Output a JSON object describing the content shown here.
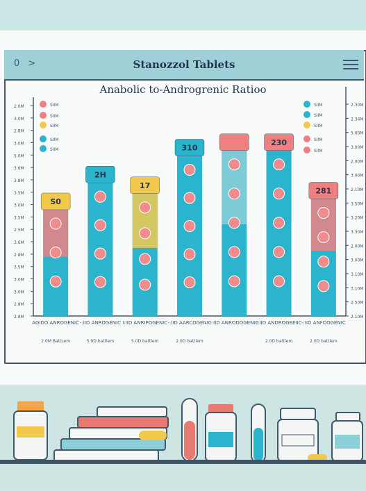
{
  "window": {
    "title": "Stanozzol Tablets",
    "nav_icon": "0 >",
    "menu_icon": "hamburger-menu-icon"
  },
  "chart_data": {
    "type": "bar",
    "title": "Anabolic to-Androgrenic Ratioo",
    "categories": [
      "AGIDO ANROGENIC",
      "-:IID ANROGENIC",
      "I:IID ANRIPOGENIC",
      "-:IID AARCOGENIC",
      "-:IID ANRODOGENIC",
      "-:IID ANDROGEEIIC",
      "-:IID ANFDOGENIC"
    ],
    "sublabels": [
      "2.0M BattLem",
      "5.9D battlem",
      "5.0D battlem",
      "2.0D battlem",
      "",
      "2.0D battlem",
      "2.0D battlem"
    ],
    "values": [
      20,
      25,
      23,
      30,
      31,
      31,
      22
    ],
    "cap_labels": [
      "S0",
      "2H",
      "17",
      "310",
      "",
      "230",
      "281"
    ],
    "series_colors": [
      "#2bb4cc",
      "#f2c94c",
      "#f08080",
      "#6fc3d3"
    ],
    "left_axis_labels": [
      "2.0M",
      "3.0M",
      "2.8M",
      "3.0M",
      "5.0M",
      "3.6M",
      "3.8M",
      "3.5M",
      "3.0M",
      "3.5M",
      "2.5M",
      "3.6M",
      "2.8M",
      "3.5M",
      "3.0M",
      "3.0M",
      "2.8M",
      "2.8M"
    ],
    "right_axis_labels": [
      "2.30M",
      "2.34M",
      "5.00M",
      "3.00M",
      "2.00M",
      "3.00M",
      "2.10M",
      "3.50M",
      "3.20M",
      "3.30M",
      "2.00M",
      "3.00M",
      "3.10M",
      "3.10M",
      "2.50M",
      "2.10M"
    ],
    "legend_left": [
      "SIIM",
      "SIIM",
      "SIIM",
      "SIIM",
      "SIIM"
    ],
    "legend_right": [
      "SIIM",
      "SIIM",
      "SIIM",
      "SIIM",
      "SIIM"
    ],
    "ylim": [
      0,
      40
    ],
    "grid": false,
    "legend_position": "top-left"
  }
}
